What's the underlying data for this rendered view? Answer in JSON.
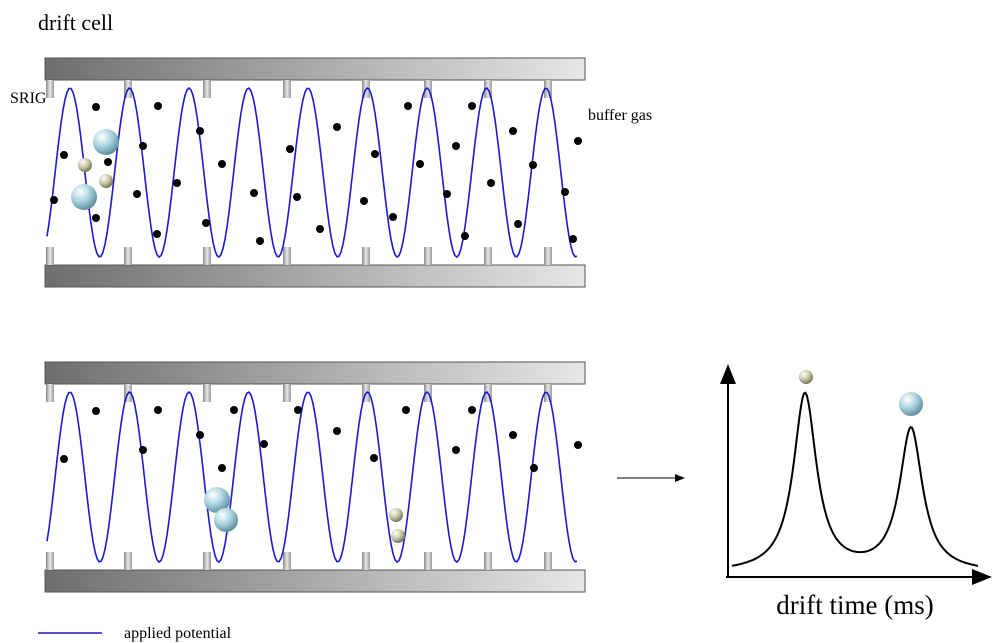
{
  "title": "drift cell",
  "labels": {
    "srig": "SRIG",
    "buffer_gas": "buffer gas"
  },
  "plot": {
    "x_label": "drift time (ms)"
  },
  "legend": {
    "label": "applied potential"
  }
}
